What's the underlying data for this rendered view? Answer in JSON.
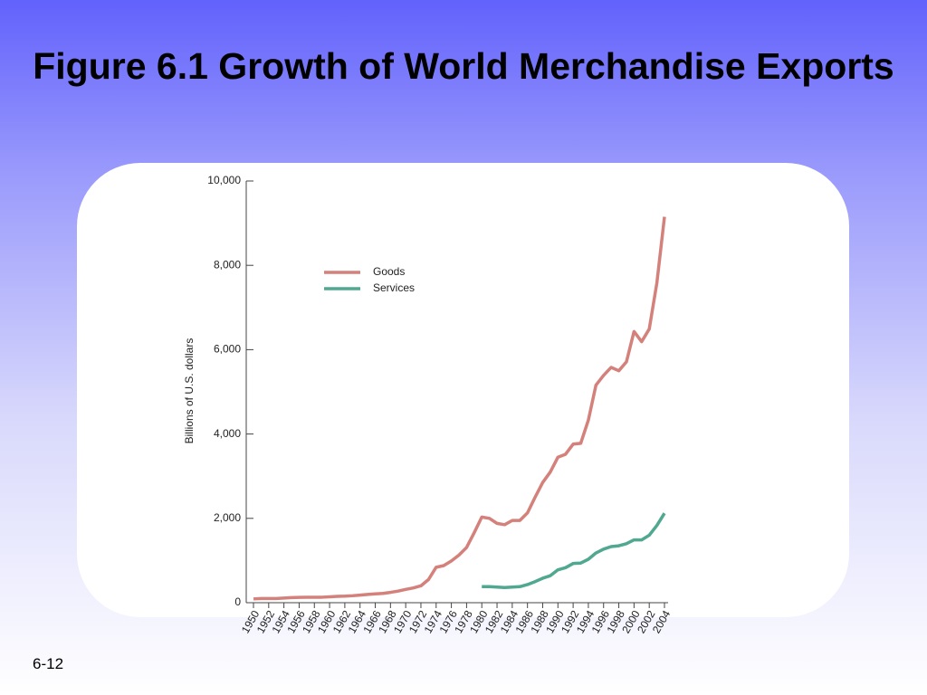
{
  "slide_number": "6-12",
  "chart_data": {
    "type": "line",
    "title": "Figure 6.1 Growth of World Merchandise Exports",
    "y_label": "Billions of U.S. dollars",
    "x": [
      1950,
      1951,
      1952,
      1953,
      1954,
      1955,
      1956,
      1957,
      1958,
      1959,
      1960,
      1961,
      1962,
      1963,
      1964,
      1965,
      1966,
      1967,
      1968,
      1969,
      1970,
      1971,
      1972,
      1973,
      1974,
      1975,
      1976,
      1977,
      1978,
      1979,
      1980,
      1981,
      1982,
      1983,
      1984,
      1985,
      1986,
      1987,
      1988,
      1989,
      1990,
      1991,
      1992,
      1993,
      1994,
      1995,
      1996,
      1997,
      1998,
      1999,
      2000,
      2001,
      2002,
      2003,
      2004
    ],
    "xlim": [
      1950,
      2004
    ],
    "xticks": [
      1950,
      1952,
      1954,
      1956,
      1958,
      1960,
      1962,
      1964,
      1966,
      1968,
      1970,
      1972,
      1974,
      1976,
      1978,
      1980,
      1982,
      1984,
      1986,
      1988,
      1990,
      1992,
      1994,
      1996,
      1998,
      2000,
      2002,
      2004
    ],
    "ylim": [
      0,
      10000
    ],
    "yticks": [
      0,
      {
        "value": 2000,
        "label": "2,000"
      },
      {
        "value": 4000,
        "label": "4,000"
      },
      {
        "value": 6000,
        "label": "6,000"
      },
      {
        "value": 8000,
        "label": "8,000"
      },
      {
        "value": 10000,
        "label": "10,000"
      }
    ],
    "series": [
      {
        "name": "Goods",
        "color": "#d4817c",
        "values": [
          90,
          100,
          100,
          100,
          110,
          120,
          125,
          130,
          130,
          130,
          140,
          150,
          155,
          165,
          180,
          195,
          210,
          220,
          245,
          275,
          315,
          350,
          400,
          550,
          840,
          880,
          990,
          1130,
          1310,
          1660,
          2030,
          2000,
          1880,
          1850,
          1950,
          1950,
          2130,
          2500,
          2850,
          3100,
          3450,
          3520,
          3760,
          3780,
          4330,
          5160,
          5390,
          5580,
          5500,
          5710,
          6430,
          6190,
          6490,
          7580,
          9150
        ]
      },
      {
        "name": "Services",
        "color": "#4fa88f",
        "values": [
          null,
          null,
          null,
          null,
          null,
          null,
          null,
          null,
          null,
          null,
          null,
          null,
          null,
          null,
          null,
          null,
          null,
          null,
          null,
          null,
          null,
          null,
          null,
          null,
          null,
          null,
          null,
          null,
          null,
          null,
          380,
          380,
          370,
          360,
          370,
          380,
          430,
          500,
          580,
          640,
          780,
          830,
          930,
          940,
          1030,
          1180,
          1270,
          1330,
          1350,
          1400,
          1490,
          1490,
          1600,
          1830,
          2120
        ]
      }
    ]
  }
}
